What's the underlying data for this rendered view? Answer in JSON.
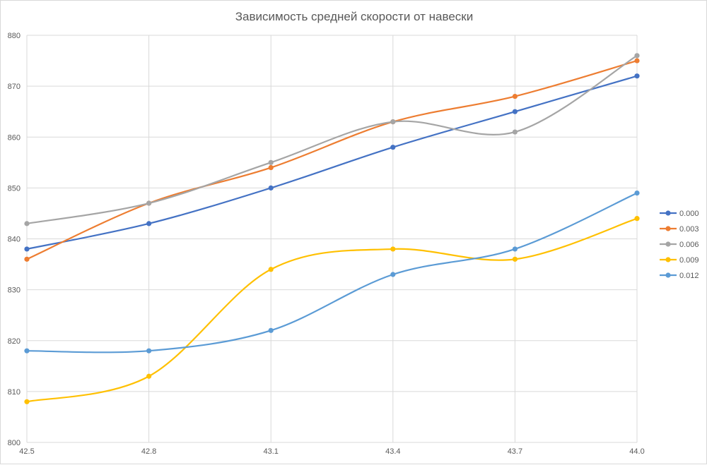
{
  "chart_data": {
    "type": "line",
    "title": "Зависимость средней скорости от навески",
    "xlabel": "",
    "ylabel": "",
    "x": [
      "42.5",
      "42.8",
      "43.1",
      "43.4",
      "43.7",
      "44.0"
    ],
    "x_range": [
      42.5,
      44.0
    ],
    "ylim": [
      800,
      880
    ],
    "yticks": [
      "800",
      "810",
      "820",
      "830",
      "840",
      "850",
      "860",
      "870",
      "880"
    ],
    "grid": true,
    "smooth": true,
    "legend_position": "right",
    "series": [
      {
        "name": "0.000",
        "color": "#4472C4",
        "values": [
          838,
          843,
          850,
          858,
          865,
          872
        ]
      },
      {
        "name": "0.003",
        "color": "#ED7D31",
        "values": [
          836,
          847,
          854,
          863,
          868,
          875
        ]
      },
      {
        "name": "0.006",
        "color": "#A5A5A5",
        "values": [
          843,
          847,
          855,
          863,
          861,
          876
        ]
      },
      {
        "name": "0.009",
        "color": "#FFC000",
        "values": [
          808,
          813,
          834,
          838,
          836,
          844
        ]
      },
      {
        "name": "0.012",
        "color": "#5B9BD5",
        "values": [
          818,
          818,
          822,
          833,
          838,
          849
        ]
      }
    ]
  }
}
